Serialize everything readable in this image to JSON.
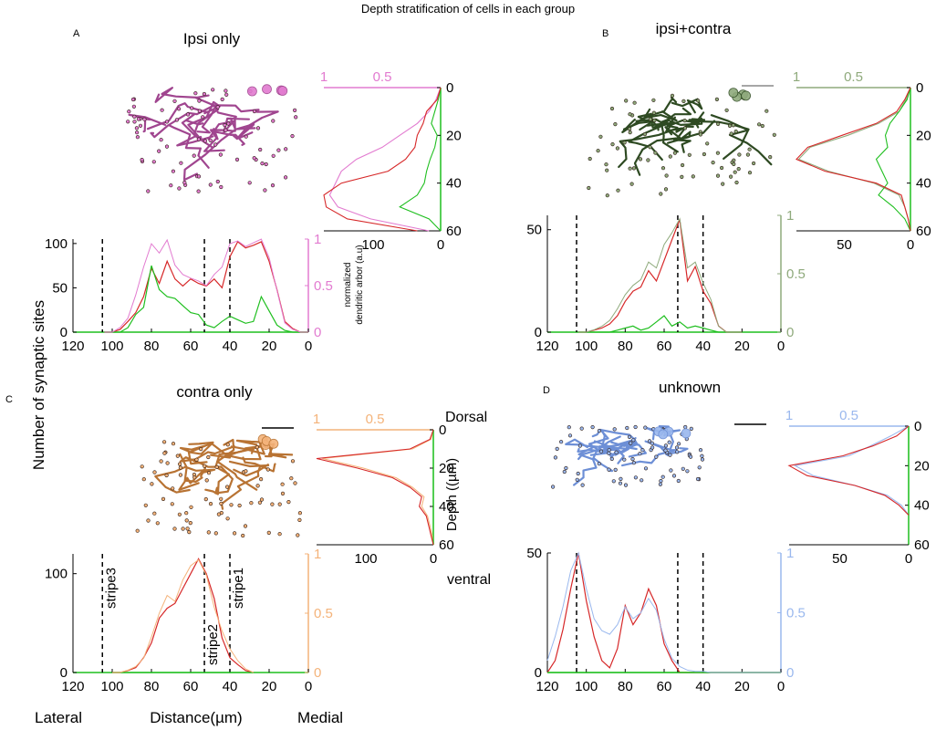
{
  "figure": {
    "title": "Depth stratification of cells in each group",
    "shared_ylabel": "Number of synaptic sites",
    "shared_xlabel": "Distance(µm)",
    "lateral_label": "Lateral",
    "medial_label": "Medial",
    "dendritic_ylabel_line1": "normalized",
    "dendritic_ylabel_line2": "dendritic arbor (a.u)",
    "depth_ylabel": "Depth ((µm)",
    "dorsal_label": "Dorsal",
    "ventral_label": "ventral",
    "stripe_labels": [
      "stripe3",
      "stripe2",
      "stripe1"
    ]
  },
  "colors": {
    "synapse_all": "#d62728",
    "synapse_green": "#1fbf1f",
    "ipsi": "#e27bd0",
    "ipsi_cell": "#a0458f",
    "bilateral": "#8faa7c",
    "bilateral_cell": "#2e4a22",
    "contra": "#f4b37a",
    "contra_cell": "#b87333",
    "unknown": "#9ab8ee",
    "unknown_cell": "#6d8fd6"
  },
  "chart_data": [
    {
      "id": "A",
      "panel_letter": "A",
      "title": "Ipsi only",
      "type": "line",
      "accent": "#e27bd0",
      "cell_color": "#a0458f",
      "cell_icon": "pink-neuron-reconstruction-icon",
      "xlim": [
        120,
        0
      ],
      "xticks": [
        "120",
        "100",
        "80",
        "60",
        "40",
        "20",
        "0"
      ],
      "ylim_left": [
        0,
        105
      ],
      "yticks_left": [
        "0",
        "50",
        "100"
      ],
      "ylim_right": [
        0,
        1
      ],
      "yticks_right": [
        "0",
        "0.5",
        "1"
      ],
      "stripes": [
        105,
        53,
        40
      ],
      "x": [
        104,
        100,
        96,
        92,
        88,
        84,
        80,
        76,
        72,
        68,
        64,
        60,
        56,
        52,
        48,
        44,
        40,
        36,
        32,
        28,
        24,
        20,
        16,
        12,
        8,
        4,
        0
      ],
      "series": [
        {
          "role": "synapse_total",
          "color": "#d62728",
          "axis": "left",
          "values": [
            0,
            0,
            3,
            12,
            22,
            40,
            72,
            55,
            80,
            60,
            52,
            60,
            55,
            52,
            60,
            50,
            85,
            102,
            95,
            98,
            102,
            80,
            48,
            12,
            4,
            0,
            0
          ]
        },
        {
          "role": "synapse_green",
          "color": "#1fbf1f",
          "axis": "left",
          "values": [
            0,
            0,
            0,
            5,
            20,
            28,
            75,
            48,
            40,
            38,
            30,
            22,
            20,
            8,
            5,
            12,
            18,
            14,
            10,
            12,
            40,
            24,
            8,
            2,
            0,
            0,
            0
          ]
        },
        {
          "role": "dendritic_arbor",
          "color": "#e27bd0",
          "axis": "right",
          "values": [
            0,
            0,
            0.05,
            0.15,
            0.4,
            0.7,
            0.95,
            0.85,
            0.99,
            0.72,
            0.62,
            0.58,
            0.55,
            0.5,
            0.62,
            0.7,
            0.95,
            0.98,
            0.92,
            0.96,
            1.0,
            0.8,
            0.45,
            0.1,
            0.03,
            0,
            0
          ]
        }
      ],
      "depth_profile": {
        "xlim": [
          1,
          0
        ],
        "xticks_top": [
          "1",
          "0.5"
        ],
        "xticks_bottom": [
          "100",
          "0"
        ],
        "yticks": [
          "0",
          "20",
          "40",
          "60"
        ],
        "depth": [
          0,
          5,
          10,
          15,
          20,
          25,
          30,
          35,
          40,
          45,
          50,
          55,
          60
        ],
        "red": [
          0.0,
          0.03,
          0.12,
          0.15,
          0.2,
          0.22,
          0.3,
          0.45,
          0.85,
          1.0,
          0.98,
          0.8,
          0.2
        ],
        "green": [
          0.0,
          0.02,
          0.05,
          0.08,
          0.03,
          0.05,
          0.09,
          0.12,
          0.14,
          0.2,
          0.35,
          0.1,
          0.0
        ],
        "accent": [
          0.0,
          0.04,
          0.1,
          0.2,
          0.35,
          0.5,
          0.72,
          0.85,
          0.9,
          0.95,
          0.88,
          0.6,
          0.1
        ]
      }
    },
    {
      "id": "B",
      "panel_letter": "B",
      "title": "ipsi+contra",
      "type": "line",
      "accent": "#8faa7c",
      "cell_color": "#2e4a22",
      "cell_icon": "green-neuron-reconstruction-icon",
      "xlim": [
        120,
        0
      ],
      "xticks": [
        "120",
        "100",
        "80",
        "60",
        "40",
        "20",
        "0"
      ],
      "ylim_left": [
        0,
        57
      ],
      "yticks_left": [
        "0",
        "50"
      ],
      "ylim_right": [
        0,
        1
      ],
      "yticks_right": [
        "0",
        "0.5",
        "1"
      ],
      "stripes": [
        105,
        53,
        40
      ],
      "x": [
        104,
        100,
        96,
        92,
        88,
        84,
        80,
        76,
        72,
        68,
        64,
        60,
        56,
        52,
        48,
        44,
        40,
        36,
        32,
        28,
        24,
        20
      ],
      "series": [
        {
          "role": "synapse_total",
          "color": "#d62728",
          "axis": "left",
          "values": [
            0,
            0,
            1,
            2,
            4,
            8,
            15,
            20,
            22,
            30,
            25,
            35,
            45,
            55,
            25,
            32,
            20,
            14,
            3,
            0,
            0,
            0
          ]
        },
        {
          "role": "synapse_green",
          "color": "#1fbf1f",
          "axis": "left",
          "values": [
            0,
            0,
            0,
            0,
            0,
            1,
            2,
            3,
            1,
            2,
            5,
            8,
            3,
            5,
            2,
            3,
            2,
            1,
            0,
            0,
            0,
            0
          ]
        },
        {
          "role": "dendritic_arbor",
          "color": "#8faa7c",
          "axis": "right",
          "values": [
            0,
            0,
            0.02,
            0.05,
            0.1,
            0.2,
            0.32,
            0.4,
            0.45,
            0.6,
            0.55,
            0.75,
            0.85,
            0.97,
            0.55,
            0.6,
            0.42,
            0.28,
            0.05,
            0,
            0,
            0
          ]
        }
      ],
      "depth_profile": {
        "xlim": [
          1,
          0
        ],
        "xticks_top": [
          "1",
          "0.5"
        ],
        "xticks_bottom": [
          "50",
          "0"
        ],
        "yticks": [
          "0",
          "20",
          "40",
          "60"
        ],
        "depth": [
          0,
          5,
          10,
          15,
          20,
          25,
          30,
          35,
          40,
          45,
          50,
          55,
          60
        ],
        "red": [
          0.0,
          0.05,
          0.12,
          0.3,
          0.6,
          0.9,
          1.0,
          0.75,
          0.3,
          0.08,
          0.05,
          0.02,
          0.0
        ],
        "green": [
          0.0,
          0.03,
          0.1,
          0.18,
          0.22,
          0.2,
          0.3,
          0.25,
          0.2,
          0.28,
          0.15,
          0.05,
          0.0
        ],
        "accent": [
          0.0,
          0.04,
          0.1,
          0.28,
          0.55,
          0.88,
          0.98,
          0.72,
          0.32,
          0.1,
          0.05,
          0.02,
          0.0
        ]
      }
    },
    {
      "id": "C",
      "panel_letter": "C",
      "title": "contra only",
      "type": "line",
      "accent": "#f4b37a",
      "cell_color": "#b87333",
      "cell_icon": "orange-neuron-reconstruction-icon",
      "xlim": [
        120,
        0
      ],
      "xticks": [
        "120",
        "100",
        "80",
        "60",
        "40",
        "20",
        "0"
      ],
      "ylim_left": [
        0,
        120
      ],
      "yticks_left": [
        "0",
        "100"
      ],
      "ylim_right": [
        0,
        1
      ],
      "yticks_right": [
        "0",
        "0.5",
        "1"
      ],
      "stripes": [
        105,
        53,
        40
      ],
      "x": [
        100,
        96,
        92,
        88,
        84,
        80,
        76,
        72,
        68,
        64,
        60,
        56,
        52,
        48,
        44,
        40,
        36,
        32,
        28
      ],
      "series": [
        {
          "role": "synapse_total",
          "color": "#d62728",
          "axis": "left",
          "values": [
            0,
            0,
            2,
            5,
            15,
            30,
            55,
            65,
            70,
            85,
            100,
            115,
            100,
            75,
            35,
            15,
            8,
            2,
            0
          ]
        },
        {
          "role": "synapse_green",
          "color": "#1fbf1f",
          "axis": "left",
          "values": [
            0,
            0,
            0,
            0,
            0,
            0,
            0,
            0,
            0,
            0,
            0,
            0,
            0,
            0,
            0,
            0,
            0,
            0,
            0
          ]
        },
        {
          "role": "dendritic_arbor",
          "color": "#f4b37a",
          "axis": "right",
          "values": [
            0,
            0,
            0.02,
            0.05,
            0.12,
            0.3,
            0.5,
            0.65,
            0.6,
            0.78,
            0.9,
            0.95,
            0.82,
            0.55,
            0.35,
            0.2,
            0.1,
            0.03,
            0
          ]
        }
      ],
      "depth_profile": {
        "xlim": [
          1,
          0
        ],
        "xticks_top": [
          "1",
          "0.5"
        ],
        "xticks_bottom": [
          "100",
          "0"
        ],
        "yticks": [
          "0",
          "20",
          "40",
          "60"
        ],
        "depth": [
          0,
          5,
          10,
          15,
          20,
          25,
          30,
          35,
          40,
          45,
          50,
          55,
          60
        ],
        "red": [
          0.0,
          0.03,
          0.2,
          1.0,
          0.65,
          0.35,
          0.2,
          0.1,
          0.12,
          0.06,
          0.04,
          0.02,
          0.0
        ],
        "green": [
          0.0,
          0.0,
          0.0,
          0.0,
          0.0,
          0.0,
          0.0,
          0.0,
          0.0,
          0.0,
          0.0,
          0.0,
          0.0
        ],
        "accent": [
          0.0,
          0.02,
          0.18,
          0.95,
          0.6,
          0.32,
          0.18,
          0.08,
          0.1,
          0.05,
          0.03,
          0.01,
          0.0
        ]
      }
    },
    {
      "id": "D",
      "panel_letter": "D",
      "title": "unknown",
      "type": "line",
      "accent": "#9ab8ee",
      "cell_color": "#6d8fd6",
      "cell_icon": "blue-neuron-reconstruction-icon",
      "xlim": [
        120,
        0
      ],
      "xticks": [
        "120",
        "100",
        "80",
        "60",
        "40",
        "20",
        "0"
      ],
      "ylim_left": [
        0,
        50
      ],
      "yticks_left": [
        "0",
        "50"
      ],
      "ylim_right": [
        0,
        1
      ],
      "yticks_right": [
        "0",
        "0.5",
        "1"
      ],
      "stripes": [
        105,
        53,
        40
      ],
      "x": [
        120,
        116,
        112,
        108,
        104,
        100,
        96,
        92,
        88,
        84,
        80,
        76,
        72,
        68,
        64,
        60,
        56,
        52,
        48,
        44,
        40,
        36,
        32,
        28,
        24,
        20,
        16,
        12,
        8,
        4,
        0
      ],
      "series": [
        {
          "role": "synapse_total",
          "color": "#d62728",
          "axis": "left",
          "values": [
            0,
            5,
            18,
            35,
            50,
            30,
            15,
            5,
            2,
            10,
            28,
            20,
            25,
            35,
            28,
            12,
            5,
            0,
            0,
            0,
            0,
            0,
            0,
            0,
            0,
            0,
            0,
            0,
            0,
            0,
            0
          ]
        },
        {
          "role": "synapse_green",
          "color": "#1fbf1f",
          "axis": "left",
          "values": [
            0,
            0,
            0,
            0,
            0,
            0,
            0,
            0,
            0,
            0,
            0,
            0,
            0,
            0,
            0,
            0,
            0,
            0,
            0,
            0,
            0,
            0,
            0,
            0,
            0,
            0,
            0,
            0,
            0,
            0,
            0
          ]
        },
        {
          "role": "dendritic_arbor",
          "color": "#9ab8ee",
          "axis": "right",
          "values": [
            0.1,
            0.3,
            0.55,
            0.85,
            1.0,
            0.7,
            0.45,
            0.35,
            0.32,
            0.4,
            0.55,
            0.45,
            0.5,
            0.62,
            0.52,
            0.28,
            0.12,
            0.05,
            0.02,
            0.01,
            0.01,
            0.0,
            0.0,
            0.0,
            0.0,
            0.0,
            0.0,
            0.0,
            0.0,
            0.0,
            0.0
          ]
        }
      ],
      "depth_profile": {
        "xlim": [
          1,
          0
        ],
        "xticks_top": [
          "1",
          "0.5"
        ],
        "xticks_bottom": [
          "50",
          "0"
        ],
        "yticks": [
          "0",
          "20",
          "40",
          "60"
        ],
        "depth": [
          0,
          5,
          10,
          15,
          20,
          25,
          30,
          35,
          40,
          45
        ],
        "red": [
          0.0,
          0.1,
          0.3,
          0.55,
          1.0,
          0.85,
          0.45,
          0.2,
          0.08,
          0.0
        ],
        "green": [
          0.0,
          0.0,
          0.0,
          0.0,
          0.0,
          0.0,
          0.0,
          0.0,
          0.0,
          0.0
        ],
        "accent": [
          0.0,
          0.15,
          0.32,
          0.5,
          0.95,
          0.8,
          0.45,
          0.18,
          0.06,
          0.0
        ]
      }
    }
  ]
}
